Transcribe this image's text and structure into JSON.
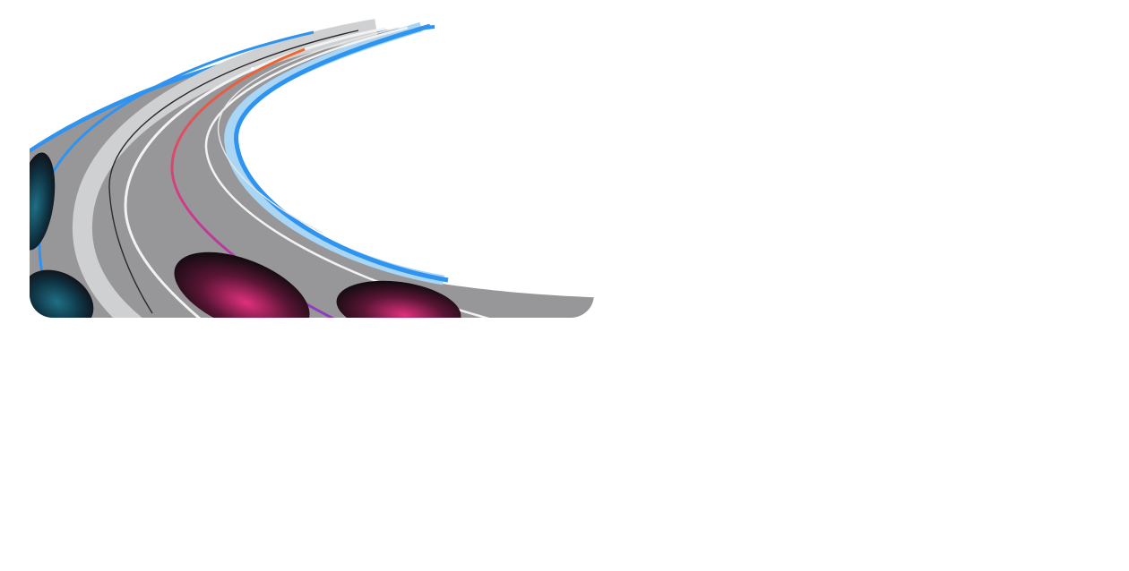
{
  "illustration": {
    "subject": "curved-road",
    "colors": {
      "background": "#ffffff",
      "asphalt": "#97979a",
      "asphalt_light": "#cfd0d2",
      "shoulder_blue": "#2f93f0",
      "shoulder_pale": "#a9d6f5",
      "lane_line": "#f2f2f2",
      "edge_dark": "#2a2a2e",
      "stripe_orange": "#ef6a2a",
      "stripe_magenta": "#d23a86",
      "stripe_purple": "#8a3cc4",
      "blob_pink": "#e0307e",
      "blob_teal": "#1f6f86",
      "blob_dark": "#120b10"
    }
  }
}
